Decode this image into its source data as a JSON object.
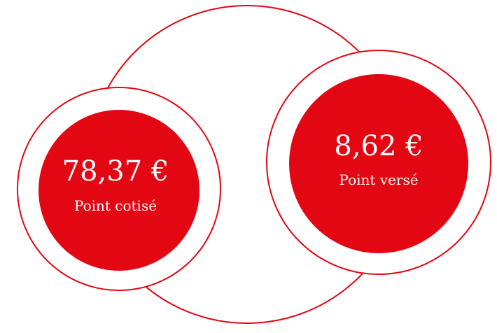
{
  "circles": [
    {
      "value": "78,37 €",
      "label": "Point cotisé"
    },
    {
      "value": "8,62 €",
      "label": "Point versé"
    }
  ]
}
